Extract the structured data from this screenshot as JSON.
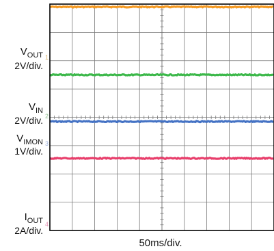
{
  "chart_data": {
    "type": "line",
    "title": "",
    "xlabel": "50ms/div.",
    "time_per_division_ms": 50,
    "horizontal_divisions": 10,
    "vertical_divisions": 8,
    "grid": true,
    "center_ticks": true,
    "colors": {
      "background": "#ffffff",
      "grid": "#7a7a7a",
      "frame": "#000000"
    },
    "series": [
      {
        "name": "VOUT",
        "label_main": "V",
        "label_sub": "OUT",
        "scale": "2V/div.",
        "marker": "1",
        "color": "#f59a23",
        "level_div": 7.9
      },
      {
        "name": "VOUT",
        "label_main": "V",
        "label_sub": "OUT",
        "scale": "2V/div.",
        "marker": "1",
        "color": "#3cb84a",
        "level_div": 5.5
      },
      {
        "name": "VIN",
        "label_main": "V",
        "label_sub": "IN",
        "scale": "2V/div.",
        "marker": "2",
        "color": "#4472c4",
        "level_div": 3.85
      },
      {
        "name": "VIMON",
        "label_main": "V",
        "label_sub": "IMON",
        "scale": "1V/div.",
        "marker": "3",
        "color": "#e83e6b",
        "level_div": 2.55
      }
    ],
    "labels": [
      {
        "id": "vout",
        "main": "V",
        "sub": "OUT",
        "scale": "2V/div.",
        "marker": "1",
        "marker_color": "#d8b26a"
      },
      {
        "id": "vin",
        "main": "V",
        "sub": "IN",
        "scale": "2V/div.",
        "marker": "2",
        "marker_color": "#8fbf8f"
      },
      {
        "id": "vimon",
        "main": "V",
        "sub": "IMON",
        "scale": "1V/div.",
        "marker": "3",
        "marker_color": "#9aaedc"
      },
      {
        "id": "iout",
        "main": "I",
        "sub": "OUT",
        "scale": "2A/div.",
        "marker": "4",
        "marker_color": "#e79ab8"
      }
    ]
  }
}
